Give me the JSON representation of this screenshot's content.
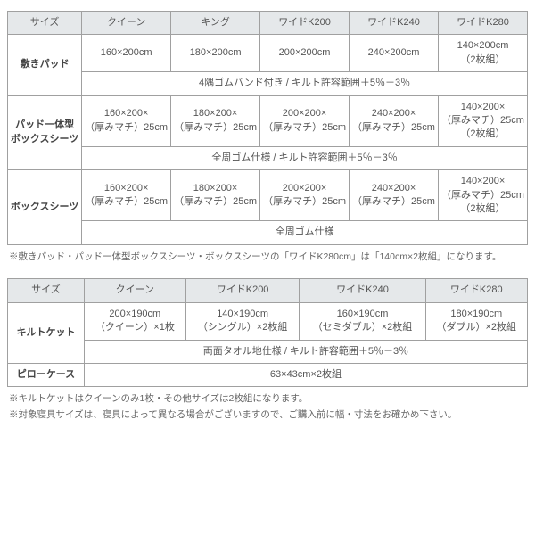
{
  "table1": {
    "headers": [
      "サイズ",
      "クイーン",
      "キング",
      "ワイドK200",
      "ワイドK240",
      "ワイドK280"
    ],
    "rows": [
      {
        "name": "敷きパッド",
        "cells": [
          "160×200cm",
          "180×200cm",
          "200×200cm",
          "240×200cm",
          "140×200cm\n（2枚組）"
        ],
        "note": "4隅ゴムバンド付き / キルト許容範囲＋5％－3％"
      },
      {
        "name": "パッド一体型\nボックスシーツ",
        "cells": [
          "160×200×\n（厚みマチ）25cm",
          "180×200×\n（厚みマチ）25cm",
          "200×200×\n（厚みマチ）25cm",
          "240×200×\n（厚みマチ）25cm",
          "140×200×\n（厚みマチ）25cm\n（2枚組）"
        ],
        "note": "全周ゴム仕様 / キルト許容範囲＋5％－3％"
      },
      {
        "name": "ボックスシーツ",
        "cells": [
          "160×200×\n（厚みマチ）25cm",
          "180×200×\n（厚みマチ）25cm",
          "200×200×\n（厚みマチ）25cm",
          "240×200×\n（厚みマチ）25cm",
          "140×200×\n（厚みマチ）25cm\n（2枚組）"
        ],
        "note": "全周ゴム仕様"
      }
    ]
  },
  "note1": "※敷きパッド・パッド一体型ボックスシーツ・ボックスシーツの「ワイドK280cm」は「140cm×2枚組」になります。",
  "table2": {
    "headers": [
      "サイズ",
      "クイーン",
      "ワイドK200",
      "ワイドK240",
      "ワイドK280"
    ],
    "rows": [
      {
        "name": "キルトケット",
        "cells": [
          "200×190cm\n（クイーン）×1枚",
          "140×190cm\n（シングル）×2枚組",
          "160×190cm\n（セミダブル）×2枚組",
          "180×190cm\n（ダブル）×2枚組"
        ],
        "note": "両面タオル地仕様 / キルト許容範囲＋5％－3％"
      },
      {
        "name": "ピローケース",
        "full": "63×43cm×2枚組"
      }
    ]
  },
  "note2a": "※キルトケットはクイーンのみ1枚・その他サイズは2枚組になります。",
  "note2b": "※対象寝具サイズは、寝具によって異なる場合がございますので、ご購入前に幅・寸法をお確かめ下さい。"
}
